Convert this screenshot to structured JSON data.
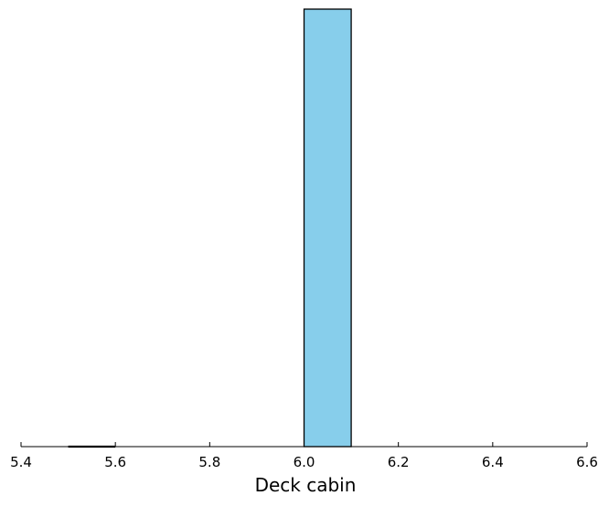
{
  "chart_data": {
    "type": "bar",
    "title": "",
    "xlabel": "Deck cabin",
    "ylabel": "",
    "xlim": [
      5.4,
      6.6
    ],
    "ylim": [
      0,
      1
    ],
    "grid": false,
    "legend": "none",
    "x_ticks": [
      "5.4",
      "5.6",
      "5.8",
      "6.0",
      "6.2",
      "6.4",
      "6.6"
    ],
    "x_tick_values": [
      5.4,
      5.6,
      5.8,
      6.0,
      6.2,
      6.4,
      6.6
    ],
    "bins": [
      {
        "x0": 5.5,
        "x1": 5.6,
        "value": 0
      },
      {
        "x0": 5.6,
        "x1": 5.7,
        "value": 0
      },
      {
        "x0": 5.7,
        "x1": 5.8,
        "value": 0
      },
      {
        "x0": 5.8,
        "x1": 5.9,
        "value": 0
      },
      {
        "x0": 5.9,
        "x1": 6.0,
        "value": 0
      },
      {
        "x0": 6.0,
        "x1": 6.1,
        "value": 1
      },
      {
        "x0": 6.1,
        "x1": 6.2,
        "value": 0
      },
      {
        "x0": 6.2,
        "x1": 6.3,
        "value": 0
      },
      {
        "x0": 6.3,
        "x1": 6.4,
        "value": 0
      },
      {
        "x0": 6.4,
        "x1": 6.5,
        "value": 0
      }
    ],
    "colors": {
      "bar_fill": "#87ceeb",
      "bar_edge": "#000000",
      "axis": "#000000"
    }
  }
}
